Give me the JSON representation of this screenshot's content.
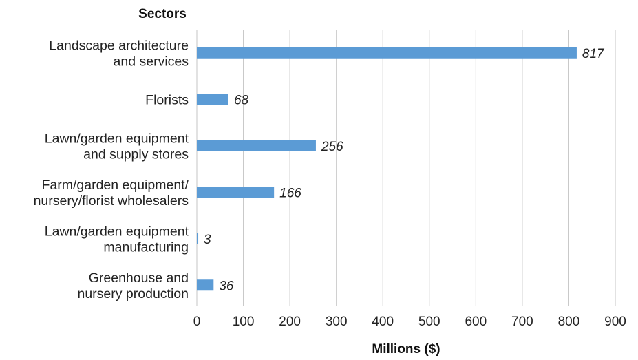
{
  "chart_data": {
    "type": "bar",
    "orientation": "horizontal",
    "ylabel": "Sectors",
    "xlabel": "Millions ($)",
    "xlim": [
      0,
      900
    ],
    "xticks": [
      0,
      100,
      200,
      300,
      400,
      500,
      600,
      700,
      800,
      900
    ],
    "grid": "vertical",
    "bar_color": "#5b9bd5",
    "categories": [
      [
        "Landscape architecture",
        "and services"
      ],
      [
        "Florists"
      ],
      [
        "Lawn/garden equipment",
        "and supply stores"
      ],
      [
        "Farm/garden equipment/",
        "nursery/florist wholesalers"
      ],
      [
        "Lawn/garden equipment",
        "manufacturing"
      ],
      [
        "Greenhouse and",
        "nursery production"
      ]
    ],
    "values": [
      817,
      68,
      256,
      166,
      3,
      36
    ],
    "data_labels": [
      "817",
      "68",
      "256",
      "166",
      "3",
      "36"
    ]
  }
}
